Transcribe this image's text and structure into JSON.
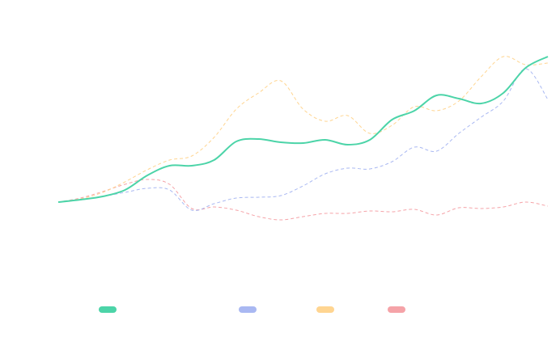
{
  "chart_data": {
    "type": "line",
    "ylim": [
      -50,
      110
    ],
    "smooth": true,
    "series": [
      {
        "color": "#4cd4a8",
        "dashed": false,
        "values": [
          0,
          1.5,
          3.5,
          7.5,
          16.5,
          22.5,
          22.5,
          26,
          37.5,
          39,
          37,
          36.5,
          38.5,
          35.5,
          38.5,
          51,
          56.5,
          66,
          64,
          61,
          67.5,
          83,
          90
        ]
      },
      {
        "color": "#a9b8f2",
        "dashed": true,
        "values": [
          0,
          1.5,
          3.5,
          6,
          8.5,
          7.5,
          -5,
          -1,
          2.5,
          3,
          4,
          10,
          17.5,
          21,
          20.5,
          25,
          34,
          31.5,
          42.5,
          52.5,
          62.5,
          82.5,
          63.5
        ]
      },
      {
        "color": "#ffd591",
        "dashed": true,
        "values": [
          0,
          2,
          6,
          12.5,
          20,
          26,
          28.5,
          40,
          57.5,
          67.5,
          75,
          57.5,
          50,
          53.5,
          42.5,
          47.5,
          59,
          56.5,
          62.5,
          77.5,
          90,
          85,
          86
        ]
      },
      {
        "color": "#f5a3a8",
        "dashed": true,
        "values": [
          0,
          2.5,
          6.5,
          11,
          14,
          11,
          -4,
          -3,
          -5,
          -9,
          -11,
          -9,
          -7,
          -7,
          -5.5,
          -6,
          -4.5,
          -8,
          -3.5,
          -4,
          -3,
          0,
          -2.5
        ]
      }
    ]
  }
}
